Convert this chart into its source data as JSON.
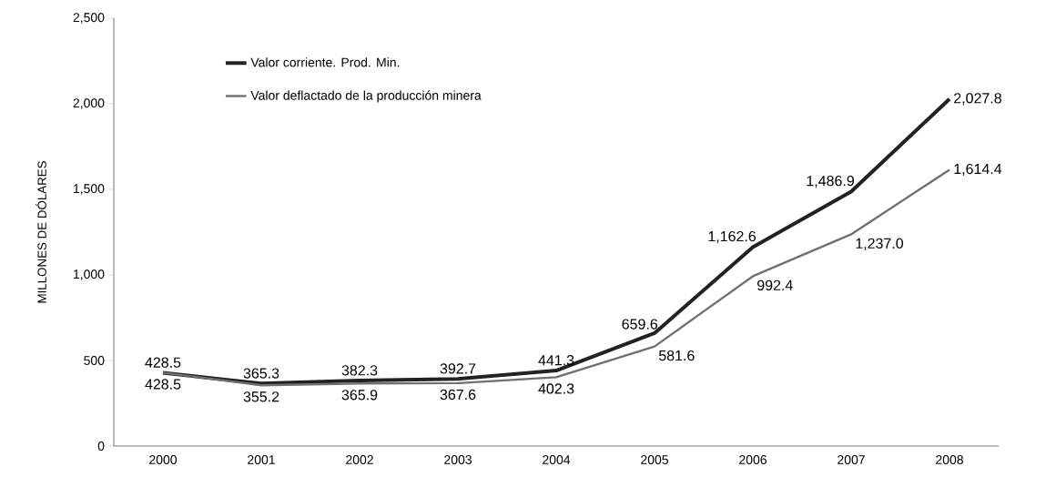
{
  "chart_data": {
    "type": "line",
    "ylabel": "MILLONES DE DÓLARES",
    "categories": [
      "2000",
      "2001",
      "2002",
      "2003",
      "2004",
      "2005",
      "2006",
      "2007",
      "2008"
    ],
    "series": [
      {
        "name": "Valor corriente. Prod. Min.",
        "color": "#222222",
        "values": [
          428.5,
          365.3,
          382.3,
          392.7,
          441.3,
          659.6,
          1162.6,
          1486.9,
          2027.8
        ],
        "value_labels": [
          "428.5",
          "365.3",
          "382.3",
          "392.7",
          "441.3",
          "659.6",
          "1,162.6",
          "1,486.9",
          "2,027.8"
        ]
      },
      {
        "name": "Valor deflactado de la producción minera",
        "color": "#707070",
        "values": [
          428.5,
          355.2,
          365.9,
          367.6,
          402.3,
          581.6,
          992.4,
          1237.0,
          1614.4
        ],
        "value_labels": [
          "428.5",
          "355.2",
          "365.9",
          "367.6",
          "402.3",
          "581.6",
          "992.4",
          "1,237.0",
          "1,614.4"
        ]
      }
    ],
    "ylim": [
      0,
      2500
    ],
    "yticks": [
      0,
      {
        "value": 500,
        "label": "500"
      },
      {
        "value": 1000,
        "label": "1,000"
      },
      {
        "value": 1500,
        "label": "1,500"
      },
      {
        "value": 2000,
        "label": "2,000"
      },
      {
        "value": 2500,
        "label": "2,500"
      }
    ],
    "grid": false,
    "legend": "top left",
    "marker": "none",
    "line_style": "solid"
  }
}
